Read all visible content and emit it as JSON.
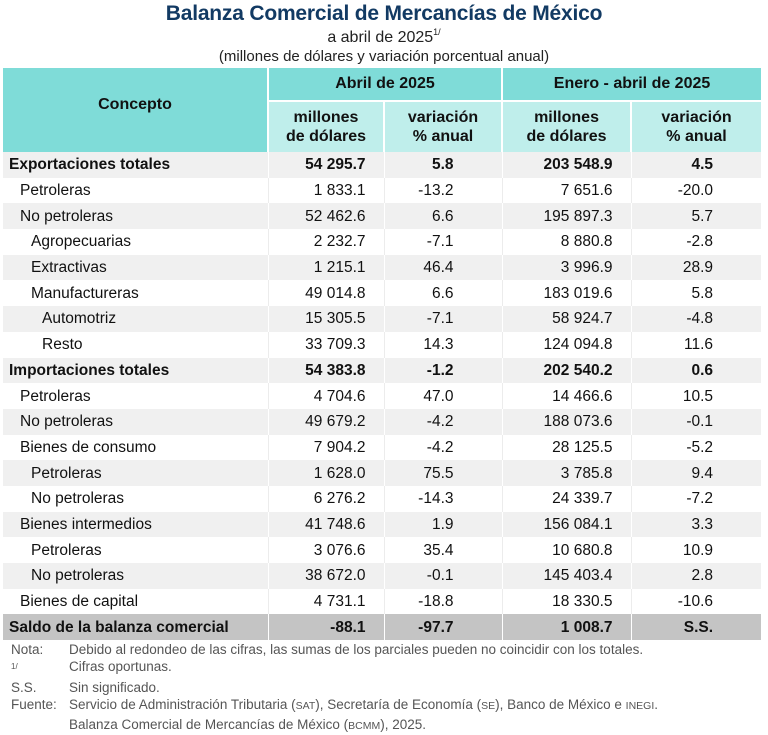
{
  "header": {
    "title": "Balanza Comercial de Mercancías de México",
    "subtitle": "a abril de 2025",
    "subtitle_sup": "1/",
    "units": "(millones de dólares y variación porcentual anual)"
  },
  "table": {
    "concept_header": "Concepto",
    "periods": [
      {
        "label": "Abril de 2025",
        "sub": [
          {
            "line1": "millones",
            "line2": "de dólares"
          },
          {
            "line1": "variación",
            "line2": "% anual"
          }
        ]
      },
      {
        "label": "Enero - abril de 2025",
        "sub": [
          {
            "line1": "millones",
            "line2": "de dólares"
          },
          {
            "line1": "variación",
            "line2": "% anual"
          }
        ]
      }
    ],
    "rows": [
      {
        "concepto": "Exportaciones totales",
        "abr_mdd": "54 295.7",
        "abr_var": "5.8",
        "ene_abr_mdd": "203 548.9",
        "ene_abr_var": "4.5"
      },
      {
        "concepto": "Petroleras",
        "abr_mdd": "1 833.1",
        "abr_var": "-13.2",
        "ene_abr_mdd": "7 651.6",
        "ene_abr_var": "-20.0"
      },
      {
        "concepto": "No petroleras",
        "abr_mdd": "52 462.6",
        "abr_var": "6.6",
        "ene_abr_mdd": "195 897.3",
        "ene_abr_var": "5.7"
      },
      {
        "concepto": "Agropecuarias",
        "abr_mdd": "2 232.7",
        "abr_var": "-7.1",
        "ene_abr_mdd": "8 880.8",
        "ene_abr_var": "-2.8"
      },
      {
        "concepto": "Extractivas",
        "abr_mdd": "1 215.1",
        "abr_var": "46.4",
        "ene_abr_mdd": "3 996.9",
        "ene_abr_var": "28.9"
      },
      {
        "concepto": "Manufactureras",
        "abr_mdd": "49 014.8",
        "abr_var": "6.6",
        "ene_abr_mdd": "183 019.6",
        "ene_abr_var": "5.8"
      },
      {
        "concepto": "Automotriz",
        "abr_mdd": "15 305.5",
        "abr_var": "-7.1",
        "ene_abr_mdd": "58 924.7",
        "ene_abr_var": "-4.8"
      },
      {
        "concepto": "Resto",
        "abr_mdd": "33 709.3",
        "abr_var": "14.3",
        "ene_abr_mdd": "124 094.8",
        "ene_abr_var": "11.6"
      },
      {
        "concepto": "Importaciones totales",
        "abr_mdd": "54 383.8",
        "abr_var": "-1.2",
        "ene_abr_mdd": "202 540.2",
        "ene_abr_var": "0.6"
      },
      {
        "concepto": "Petroleras",
        "abr_mdd": "4 704.6",
        "abr_var": "47.0",
        "ene_abr_mdd": "14 466.6",
        "ene_abr_var": "10.5"
      },
      {
        "concepto": "No petroleras",
        "abr_mdd": "49 679.2",
        "abr_var": "-4.2",
        "ene_abr_mdd": "188 073.6",
        "ene_abr_var": "-0.1"
      },
      {
        "concepto": "Bienes de consumo",
        "abr_mdd": "7 904.2",
        "abr_var": "-4.2",
        "ene_abr_mdd": "28 125.5",
        "ene_abr_var": "-5.2"
      },
      {
        "concepto": "Petroleras",
        "abr_mdd": "1 628.0",
        "abr_var": "75.5",
        "ene_abr_mdd": "3 785.8",
        "ene_abr_var": "9.4"
      },
      {
        "concepto": "No petroleras",
        "abr_mdd": "6 276.2",
        "abr_var": "-14.3",
        "ene_abr_mdd": "24 339.7",
        "ene_abr_var": "-7.2"
      },
      {
        "concepto": "Bienes intermedios",
        "abr_mdd": "41 748.6",
        "abr_var": "1.9",
        "ene_abr_mdd": "156 084.1",
        "ene_abr_var": "3.3"
      },
      {
        "concepto": "Petroleras",
        "abr_mdd": "3 076.6",
        "abr_var": "35.4",
        "ene_abr_mdd": "10 680.8",
        "ene_abr_var": "10.9"
      },
      {
        "concepto": "No petroleras",
        "abr_mdd": "38 672.0",
        "abr_var": "-0.1",
        "ene_abr_mdd": "145 403.4",
        "ene_abr_var": "2.8"
      },
      {
        "concepto": "Bienes de capital",
        "abr_mdd": "4 731.1",
        "abr_var": "-18.8",
        "ene_abr_mdd": "18 330.5",
        "ene_abr_var": "-10.6"
      },
      {
        "concepto": "Saldo de la balanza comercial",
        "abr_mdd": "-88.1",
        "abr_var": "-97.7",
        "ene_abr_mdd": "1 008.7",
        "ene_abr_var": "S.S."
      }
    ]
  },
  "notes": {
    "nota_key": "Nota:",
    "nota_text": "Debido al redondeo de las cifras, las sumas de los parciales pueden no coincidir con los totales.",
    "fn1_key": "1/",
    "fn1_text": "Cifras oportunas.",
    "ss_key": "S.S.",
    "ss_text": "Sin significado.",
    "fuente_key": "Fuente:",
    "fuente_p1": "Servicio de Administración Tributaria (",
    "fuente_sat": "SAT",
    "fuente_p2": "), Secretaría de Economía (",
    "fuente_se": "SE",
    "fuente_p3": "), Banco de México e ",
    "fuente_inegi": "INEGI",
    "fuente_p4": ".",
    "fuente_l2a": "Balanza Comercial de Mercancías de México (",
    "fuente_bcmm": "BCMM",
    "fuente_l2b": "), 2025."
  }
}
